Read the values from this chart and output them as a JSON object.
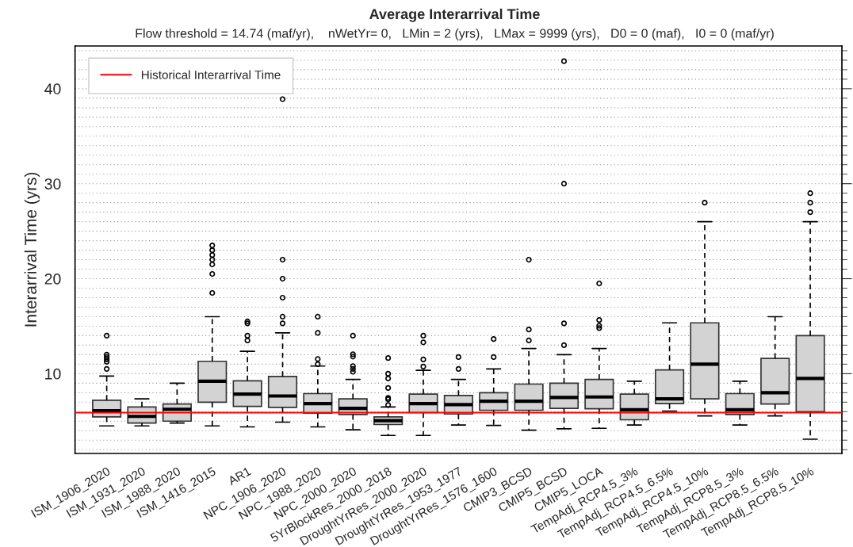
{
  "chart_data": {
    "type": "box",
    "title": "Average Interarrival Time",
    "subtitle": "Flow threshold = 14.74 (maf/yr),    nWetYr= 0,   LMin = 2 (yrs),   LMax = 9999 (yrs),   D0 = 0 (maf),   I0 = 0 (maf/yr)",
    "ylabel": "Interarrival Time (yrs)",
    "categories": [
      "ISM_1906_2020",
      "ISM_1931_2020",
      "ISM_1988_2020",
      "ISM_1416_2015",
      "AR1",
      "NPC_1906_2020",
      "NPC_1988_2020",
      "NPC_2000_2020",
      "5YrBlockRes_2000_2018",
      "DroughtYrRes_2000_2020",
      "DroughtYrRes_1953_1977",
      "DroughtYrRes_1576_1600",
      "CMIP3_BCSD",
      "CMIP5_BCSD",
      "CMIP5_LOCA",
      "TempAdj_RCP4.5_3%",
      "TempAdj_RCP4.5_6.5%",
      "TempAdj_RCP4.5_10%",
      "TempAdj_RCP8.5_3%",
      "TempAdj_RCP8.5_6.5%",
      "TempAdj_RCP8.5_10%"
    ],
    "series": [
      {
        "color": "#d3d3d3",
        "boxes": [
          {
            "low": 4.5,
            "q1": 5.45,
            "median": 6.1,
            "q3": 7.2,
            "high": 9.75,
            "outliers": [
              10.5,
              11.25,
              11.5,
              11.75,
              12,
              14
            ]
          },
          {
            "low": 4.5,
            "q1": 4.8,
            "median": 5.5,
            "q3": 6.5,
            "high": 7.35
          },
          {
            "low": 4.8,
            "q1": 5.0,
            "median": 6.25,
            "q3": 6.8,
            "high": 9.0
          },
          {
            "low": 4.5,
            "q1": 7.0,
            "median": 9.2,
            "q3": 11.3,
            "high": 16,
            "outliers": [
              18.5,
              20.5,
              21.5,
              22,
              22.5,
              23,
              23.5
            ]
          },
          {
            "low": 4.4,
            "q1": 6.55,
            "median": 7.85,
            "q3": 9.25,
            "high": 12.35,
            "outliers": [
              13.5,
              14,
              15.3,
              15.5
            ]
          },
          {
            "low": 4.9,
            "q1": 6.45,
            "median": 7.65,
            "q3": 9.7,
            "high": 14.3,
            "outliers": [
              15.3,
              16,
              18,
              20,
              22,
              38.9
            ]
          },
          {
            "low": 4.4,
            "q1": 5.85,
            "median": 6.85,
            "q3": 7.9,
            "high": 10.8,
            "outliers": [
              11,
              11.55,
              14.3,
              16
            ]
          },
          {
            "low": 4.1,
            "q1": 5.7,
            "median": 6.35,
            "q3": 7.35,
            "high": 9.4,
            "outliers": [
              10.2,
              10.5,
              10.8,
              11.8,
              12.05,
              14
            ]
          },
          {
            "low": 3.5,
            "q1": 4.65,
            "median": 5.05,
            "q3": 5.45,
            "high": 6.5,
            "outliers": [
              6.7,
              7.3,
              7.45,
              8.5,
              9.5,
              10,
              11.65
            ]
          },
          {
            "low": 3.5,
            "q1": 5.9,
            "median": 6.85,
            "q3": 7.85,
            "high": 10.35,
            "outliers": [
              10.75,
              11.5,
              13.3,
              14
            ]
          },
          {
            "low": 4.6,
            "q1": 5.75,
            "median": 6.75,
            "q3": 7.7,
            "high": 9.4,
            "outliers": [
              10.5,
              11.75
            ]
          },
          {
            "low": 4.55,
            "q1": 6.15,
            "median": 7.1,
            "q3": 8.0,
            "high": 10.5,
            "outliers": [
              11.75,
              13.65
            ]
          },
          {
            "low": 4.05,
            "q1": 6.15,
            "median": 7.1,
            "q3": 8.9,
            "high": 12.65,
            "outliers": [
              13.5,
              14.65,
              22
            ]
          },
          {
            "low": 4.2,
            "q1": 6.35,
            "median": 7.5,
            "q3": 9.0,
            "high": 12.0,
            "outliers": [
              13,
              15.3,
              30,
              42.9
            ]
          },
          {
            "low": 4.25,
            "q1": 6.3,
            "median": 7.55,
            "q3": 9.4,
            "high": 12.65,
            "outliers": [
              14.8,
              15.05,
              15.65,
              19.5
            ]
          },
          {
            "low": 4.6,
            "q1": 5.15,
            "median": 6.2,
            "q3": 7.85,
            "high": 9.2
          },
          {
            "low": 6.05,
            "q1": 6.85,
            "median": 7.35,
            "q3": 10.4,
            "high": 15.35
          },
          {
            "low": 5.55,
            "q1": 7.35,
            "median": 11.0,
            "q3": 15.35,
            "high": 26,
            "outliers": [
              28
            ]
          },
          {
            "low": 4.6,
            "q1": 5.7,
            "median": 6.2,
            "q3": 7.9,
            "high": 9.2
          },
          {
            "low": 5.55,
            "q1": 6.8,
            "median": 8.0,
            "q3": 11.6,
            "high": 16
          },
          {
            "low": 3.1,
            "q1": 6.0,
            "median": 9.5,
            "q3": 14.0,
            "high": 26,
            "outliers": [
              27,
              28,
              29
            ]
          }
        ]
      }
    ],
    "ref_lines": [
      {
        "axis": "y",
        "value": 5.9,
        "label": "Historical Interarrival Time",
        "color": "#ff0000"
      }
    ],
    "ylim": [
      1.6,
      44.5
    ],
    "yticks": [
      {
        "value": 2,
        "label": null
      },
      {
        "value": 3,
        "label": null
      },
      {
        "value": 4,
        "label": null
      },
      {
        "value": 5,
        "label": null
      },
      {
        "value": 6,
        "label": null
      },
      {
        "value": 7,
        "label": null
      },
      {
        "value": 8,
        "label": null
      },
      {
        "value": 9,
        "label": null
      },
      10,
      {
        "value": 11,
        "label": null
      },
      {
        "value": 12,
        "label": null
      },
      {
        "value": 13,
        "label": null
      },
      {
        "value": 14,
        "label": null
      },
      {
        "value": 15,
        "label": null
      },
      {
        "value": 16,
        "label": null
      },
      {
        "value": 17,
        "label": null
      },
      {
        "value": 18,
        "label": null
      },
      {
        "value": 19,
        "label": null
      },
      20,
      {
        "value": 21,
        "label": null
      },
      {
        "value": 22,
        "label": null
      },
      {
        "value": 23,
        "label": null
      },
      {
        "value": 24,
        "label": null
      },
      {
        "value": 25,
        "label": null
      },
      {
        "value": 26,
        "label": null
      },
      {
        "value": 27,
        "label": null
      },
      {
        "value": 28,
        "label": null
      },
      {
        "value": 29,
        "label": null
      },
      30,
      {
        "value": 31,
        "label": null
      },
      {
        "value": 32,
        "label": null
      },
      {
        "value": 33,
        "label": null
      },
      {
        "value": 34,
        "label": null
      },
      {
        "value": 35,
        "label": null
      },
      {
        "value": 36,
        "label": null
      },
      {
        "value": 37,
        "label": null
      },
      {
        "value": 38,
        "label": null
      },
      {
        "value": 39,
        "label": null
      },
      40,
      {
        "value": 41,
        "label": null
      },
      {
        "value": 42,
        "label": null
      },
      {
        "value": 43,
        "label": null
      },
      {
        "value": 44,
        "label": null
      }
    ],
    "grid": "y",
    "legend": "top left"
  }
}
